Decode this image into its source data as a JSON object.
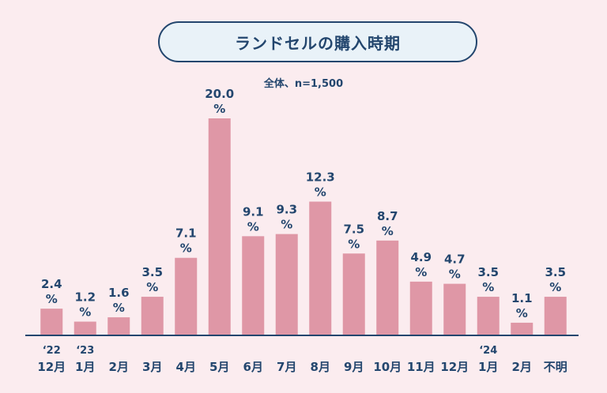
{
  "chart_data": {
    "type": "bar",
    "title": "ランドセルの購入時期",
    "subtitle": "全体、n=1,500",
    "categories": [
      "12月",
      "1月",
      "2月",
      "3月",
      "4月",
      "5月",
      "6月",
      "7月",
      "8月",
      "9月",
      "10月",
      "11月",
      "12月",
      "1月",
      "2月",
      "不明"
    ],
    "year_markers": [
      "‘22",
      "‘23",
      "",
      "",
      "",
      "",
      "",
      "",
      "",
      "",
      "",
      "",
      "",
      "‘24",
      "",
      ""
    ],
    "values": [
      2.4,
      1.2,
      1.6,
      3.5,
      7.1,
      20.0,
      9.1,
      9.3,
      12.3,
      7.5,
      8.7,
      4.9,
      4.7,
      3.5,
      1.1,
      3.5
    ],
    "value_labels": [
      "2.4",
      "1.2",
      "1.6",
      "3.5",
      "7.1",
      "20.0",
      "9.1",
      "9.3",
      "12.3",
      "7.5",
      "8.7",
      "4.9",
      "4.7",
      "3.5",
      "1.1",
      "3.5"
    ],
    "unit": "%",
    "ylim": [
      0,
      20
    ],
    "grid": false,
    "bar_color": "#df97a6",
    "text_color": "#23466e"
  }
}
